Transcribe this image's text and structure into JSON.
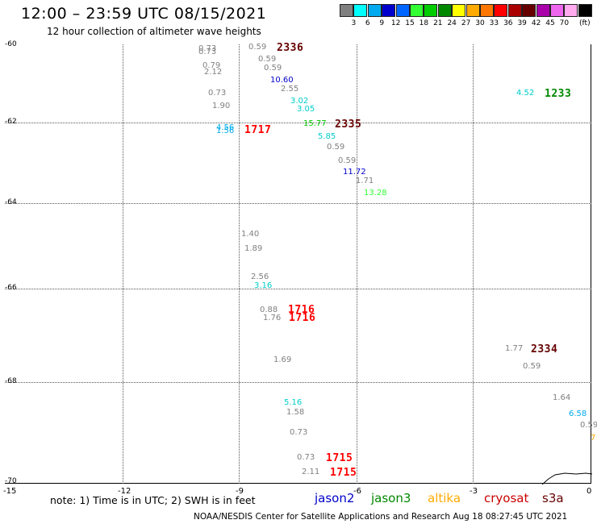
{
  "header": {
    "title": "12:00 – 23:59 UTC 08/15/2021",
    "subtitle": "12 hour collection of altimeter wave heights"
  },
  "legend": {
    "unit": "(ft)",
    "colors": [
      "#808080",
      "#00ffff",
      "#00aaee",
      "#0000cc",
      "#0066ff",
      "#33ff33",
      "#00cc00",
      "#008800",
      "#ffff00",
      "#ffaa00",
      "#ff7700",
      "#ff0000",
      "#aa0000",
      "#660000",
      "#aa00aa",
      "#ee66ee",
      "#ffaaee",
      "#000000"
    ],
    "labels": [
      "3",
      "6",
      "9",
      "12",
      "15",
      "18",
      "21",
      "24",
      "27",
      "30",
      "33",
      "36",
      "39",
      "42",
      "45",
      "70"
    ]
  },
  "axes": {
    "lat_labels": [
      "-60",
      "-62",
      "-64",
      "-66",
      "-68",
      "-70"
    ],
    "lon_labels": [
      "-15",
      "-12",
      "-9",
      "-6",
      "-3",
      "0"
    ]
  },
  "measurements": [
    {
      "text": "0.73",
      "color": "#808080",
      "type": "v"
    },
    {
      "text": "0.73",
      "color": "#808080",
      "type": "v"
    },
    {
      "text": "0.79",
      "color": "#808080",
      "type": "v"
    },
    {
      "text": "2.12",
      "color": "#808080",
      "type": "v"
    },
    {
      "text": "0.73",
      "color": "#808080",
      "type": "v"
    },
    {
      "text": "1.90",
      "color": "#808080",
      "type": "v"
    },
    {
      "text": "0.59",
      "color": "#808080",
      "type": "v"
    },
    {
      "text": "2336",
      "color": "#660000",
      "type": "id"
    },
    {
      "text": "0.59",
      "color": "#808080",
      "type": "v"
    },
    {
      "text": "0.59",
      "color": "#808080",
      "type": "v"
    },
    {
      "text": "10.60",
      "color": "#0000cc",
      "type": "v"
    },
    {
      "text": "2.55",
      "color": "#808080",
      "type": "v"
    },
    {
      "text": "3.02",
      "color": "#00cccc",
      "type": "v"
    },
    {
      "text": "3.05",
      "color": "#00cccc",
      "type": "v"
    },
    {
      "text": "15.77",
      "color": "#00cc00",
      "type": "v"
    },
    {
      "text": "2335",
      "color": "#660000",
      "type": "id"
    },
    {
      "text": "4.56",
      "color": "#00aaee",
      "type": "v"
    },
    {
      "text": "1.56",
      "color": "#00aaee",
      "type": "v"
    },
    {
      "text": "1717",
      "color": "#ff0000",
      "type": "id"
    },
    {
      "text": "5.85",
      "color": "#00cccc",
      "type": "v"
    },
    {
      "text": "0.59",
      "color": "#808080",
      "type": "v"
    },
    {
      "text": "0.59",
      "color": "#808080",
      "type": "v"
    },
    {
      "text": "11.72",
      "color": "#0000cc",
      "type": "v"
    },
    {
      "text": "1.71",
      "color": "#808080",
      "type": "v"
    },
    {
      "text": "13.28",
      "color": "#33ff33",
      "type": "v"
    },
    {
      "text": "4.52",
      "color": "#00cccc",
      "type": "v"
    },
    {
      "text": "1233",
      "color": "#008800",
      "type": "id"
    },
    {
      "text": "1.40",
      "color": "#808080",
      "type": "v"
    },
    {
      "text": "1.89",
      "color": "#808080",
      "type": "v"
    },
    {
      "text": "2.56",
      "color": "#808080",
      "type": "v"
    },
    {
      "text": "3.16",
      "color": "#00cccc",
      "type": "v"
    },
    {
      "text": "0.88",
      "color": "#808080",
      "type": "v"
    },
    {
      "text": "1716",
      "color": "#ff0000",
      "type": "id"
    },
    {
      "text": "1.76",
      "color": "#808080",
      "type": "v"
    },
    {
      "text": "1716",
      "color": "#ff0000",
      "type": "id"
    },
    {
      "text": "1.69",
      "color": "#808080",
      "type": "v"
    },
    {
      "text": "1.77",
      "color": "#808080",
      "type": "v"
    },
    {
      "text": "2334",
      "color": "#660000",
      "type": "id"
    },
    {
      "text": "0.59",
      "color": "#808080",
      "type": "v"
    },
    {
      "text": "5.16",
      "color": "#00cccc",
      "type": "v"
    },
    {
      "text": "1.58",
      "color": "#808080",
      "type": "v"
    },
    {
      "text": "0.73",
      "color": "#808080",
      "type": "v"
    },
    {
      "text": "0.73",
      "color": "#808080",
      "type": "v"
    },
    {
      "text": "1715",
      "color": "#ff0000",
      "type": "id"
    },
    {
      "text": "2.11",
      "color": "#808080",
      "type": "v"
    },
    {
      "text": "1715",
      "color": "#ff0000",
      "type": "id"
    },
    {
      "text": "1.64",
      "color": "#808080",
      "type": "v"
    },
    {
      "text": "6.58",
      "color": "#00aaee",
      "type": "v"
    },
    {
      "text": "0.59",
      "color": "#808080",
      "type": "v"
    },
    {
      "text": "7",
      "color": "#ffaa00",
      "type": "v"
    }
  ],
  "footer": {
    "note": "note:  1) Time is in UTC;  2) SWH is in feet",
    "satellites": [
      {
        "name": "jason2",
        "color": "#0000cc"
      },
      {
        "name": "jason3",
        "color": "#008800"
      },
      {
        "name": "altika",
        "color": "#ffaa00"
      },
      {
        "name": "cryosat",
        "color": "#cc0000"
      },
      {
        "name": "s3a",
        "color": "#660000"
      }
    ],
    "credit": "NOAA/NESDIS Center for Satellite Applications and Research      Aug 18 08:27:45 UTC 2021"
  }
}
